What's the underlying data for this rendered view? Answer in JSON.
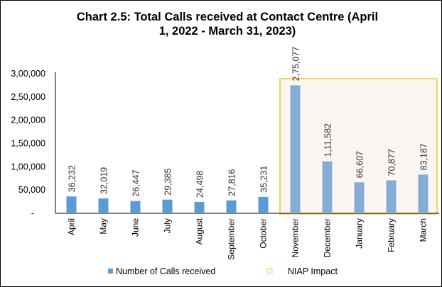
{
  "chart_data": {
    "type": "bar",
    "title": "Chart 2.5: Total Calls received at Contact Centre (April 1, 2022 - March 31, 2023)",
    "title_lines": [
      "Chart 2.5: Total Calls received at Contact Centre (April",
      "1, 2022 - March 31, 2023)"
    ],
    "xlabel": "",
    "ylabel": "",
    "ylim": [
      0,
      300000
    ],
    "yticks": [
      0,
      50000,
      100000,
      150000,
      200000,
      250000,
      300000
    ],
    "ytick_labels": [
      "-",
      "50,000",
      "1,00,000",
      "1,50,000",
      "2,00,000",
      "2,50,000",
      "3,00,000"
    ],
    "categories": [
      "April",
      "May",
      "June",
      "July",
      "August",
      "September",
      "October",
      "November",
      "December",
      "January",
      "February",
      "March"
    ],
    "series": [
      {
        "name": "Number of Calls received",
        "values": [
          36232,
          32019,
          26447,
          29385,
          24498,
          27816,
          35231,
          275077,
          111582,
          66607,
          70877,
          83187
        ],
        "labels": [
          "36,232",
          "32,019",
          "26,447",
          "29,385",
          "24,498",
          "27,816",
          "35,231",
          "2,75,077",
          "1,11,582",
          "66,607",
          "70,877",
          "83,187"
        ]
      }
    ],
    "highlight": {
      "name": "NIAP Impact",
      "from_category": "November",
      "to_category": "March"
    },
    "legend": [
      "Number of Calls received",
      "NIAP Impact"
    ],
    "legend_position": "bottom",
    "grid": false,
    "colors": {
      "bar": "#5b9bd5",
      "bar_highlight": "#84acd6",
      "highlight_border": "#f5d260",
      "highlight_fill": "#fbf6f2"
    }
  }
}
